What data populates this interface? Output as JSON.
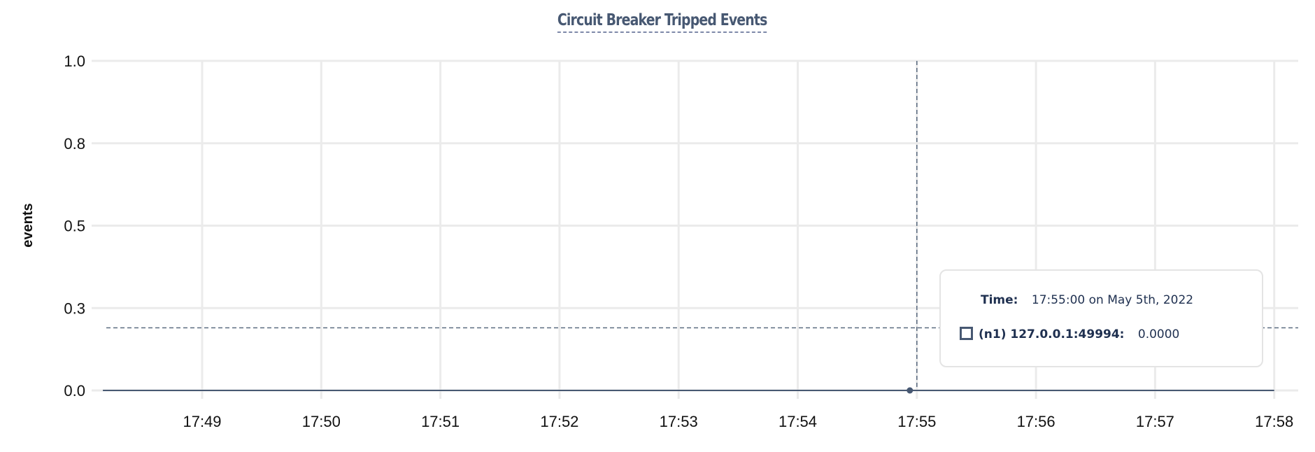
{
  "chart_data": {
    "type": "line",
    "title": "Circuit Breaker Tripped Events",
    "xlabel": "",
    "ylabel": "events",
    "ylim": [
      0,
      1
    ],
    "y_ticks": [
      0,
      0.25,
      0.5,
      0.75,
      1.0
    ],
    "y_tick_labels": [
      "0.0",
      "0.3",
      "0.5",
      "0.8",
      "1.0"
    ],
    "x_range": [
      "17:48:10",
      "17:58:00"
    ],
    "x_ticks": [
      "17:49",
      "17:50",
      "17:51",
      "17:52",
      "17:53",
      "17:54",
      "17:55",
      "17:56",
      "17:57",
      "17:58"
    ],
    "grid": true,
    "series": [
      {
        "name": "(n1) 127.0.0.1:49994",
        "color": "#475872",
        "points": [
          {
            "x": "17:48:10",
            "y": 0
          },
          {
            "x": "17:55:00",
            "y": 0
          },
          {
            "x": "17:58:00",
            "y": 0
          }
        ]
      }
    ],
    "hover": {
      "x": "17:55:00",
      "y_guide": 0.19
    }
  },
  "tooltip": {
    "time_label": "Time:",
    "time_value": "17:55:00 on May 5th, 2022",
    "series_label": "(n1) 127.0.0.1:49994:",
    "series_value": "0.0000"
  }
}
